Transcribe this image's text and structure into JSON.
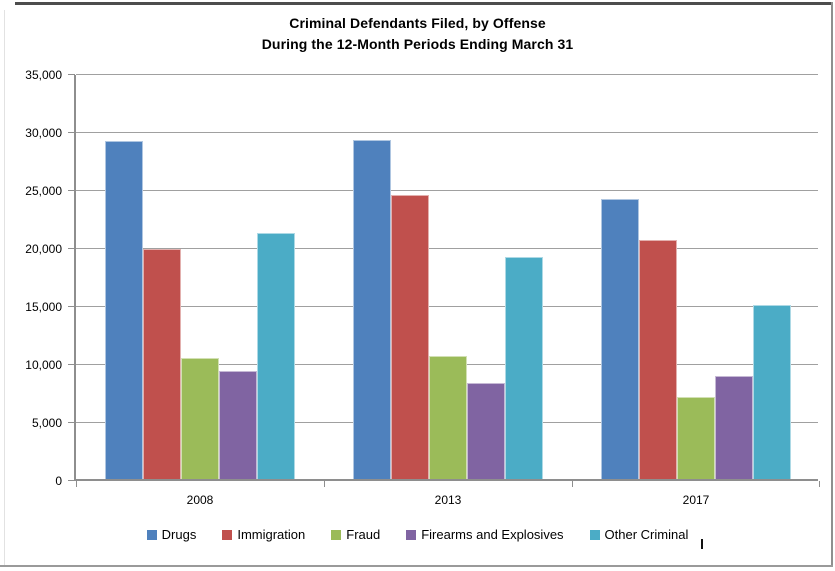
{
  "chart_data": {
    "type": "bar",
    "title": "Criminal Defendants Filed, by Offense",
    "subtitle": "During the 12-Month Periods Ending March 31",
    "categories": [
      "2008",
      "2013",
      "2017"
    ],
    "series": [
      {
        "name": "Drugs",
        "color": "#4F81BD",
        "values": [
          29100,
          29200,
          24100
        ]
      },
      {
        "name": "Immigration",
        "color": "#C0504D",
        "values": [
          19800,
          24500,
          20600
        ]
      },
      {
        "name": "Fraud",
        "color": "#9BBB59",
        "values": [
          10400,
          10600,
          7100
        ]
      },
      {
        "name": "Firearms and Explosives",
        "color": "#8064A2",
        "values": [
          9300,
          8300,
          8900
        ]
      },
      {
        "name": "Other Criminal",
        "color": "#4BACC6",
        "values": [
          21200,
          19100,
          15000
        ]
      }
    ],
    "ylim": [
      0,
      35000
    ],
    "yticks": {
      "values": [
        0,
        5000,
        10000,
        15000,
        20000,
        25000,
        30000,
        35000
      ],
      "labels": [
        "0",
        "5,000",
        "10,000",
        "15,000",
        "20,000",
        "25,000",
        "30,000",
        "35,000"
      ]
    },
    "grid": true,
    "legend_position": "bottom"
  }
}
